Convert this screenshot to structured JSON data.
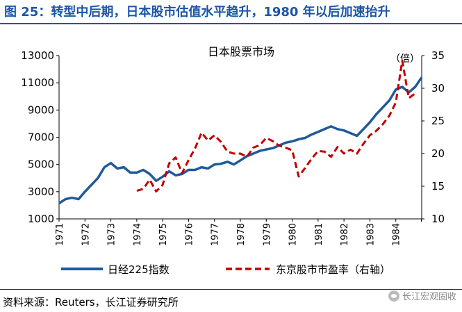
{
  "figure_title": "图 25：转型中后期，日本股市估值水平趋升，1980 年以后加速抬升",
  "source": "资料来源：Reuters，长江证券研究所",
  "watermark": "长江宏观固收",
  "colors": {
    "title": "#1a56a8",
    "nikkei": "#1f5a9a",
    "pe": "#c00000"
  },
  "chart_data": {
    "type": "line",
    "title": "日本股票市场",
    "x_ticks": [
      "1971",
      "1972",
      "1973",
      "1974",
      "1975",
      "1976",
      "1977",
      "1978",
      "1979",
      "1980",
      "1981",
      "1982",
      "1983",
      "1984"
    ],
    "xlim": [
      1971,
      1985
    ],
    "left_axis": {
      "ylim": [
        1000,
        13000
      ],
      "ticks": [
        "13000",
        "11000",
        "9000",
        "7000",
        "5000",
        "3000",
        "1000"
      ]
    },
    "right_axis": {
      "label": "（倍）",
      "ylim": [
        10,
        35
      ],
      "ticks": [
        "35",
        "30",
        "25",
        "20",
        "15",
        "10"
      ]
    },
    "series": [
      {
        "name": "日经225指数",
        "axis": "left",
        "style": "solid",
        "points": [
          [
            1971.0,
            2150
          ],
          [
            1971.25,
            2450
          ],
          [
            1971.5,
            2550
          ],
          [
            1971.75,
            2450
          ],
          [
            1972.0,
            3000
          ],
          [
            1972.25,
            3500
          ],
          [
            1972.5,
            4000
          ],
          [
            1972.75,
            4800
          ],
          [
            1973.0,
            5100
          ],
          [
            1973.25,
            4700
          ],
          [
            1973.5,
            4800
          ],
          [
            1973.75,
            4400
          ],
          [
            1974.0,
            4400
          ],
          [
            1974.25,
            4600
          ],
          [
            1974.5,
            4300
          ],
          [
            1974.75,
            3800
          ],
          [
            1975.0,
            4100
          ],
          [
            1975.25,
            4500
          ],
          [
            1975.5,
            4200
          ],
          [
            1975.75,
            4300
          ],
          [
            1976.0,
            4600
          ],
          [
            1976.25,
            4600
          ],
          [
            1976.5,
            4800
          ],
          [
            1976.75,
            4700
          ],
          [
            1977.0,
            5000
          ],
          [
            1977.25,
            5050
          ],
          [
            1977.5,
            5200
          ],
          [
            1977.75,
            5000
          ],
          [
            1978.0,
            5300
          ],
          [
            1978.25,
            5600
          ],
          [
            1978.5,
            5800
          ],
          [
            1978.75,
            6000
          ],
          [
            1979.0,
            6100
          ],
          [
            1979.25,
            6200
          ],
          [
            1979.5,
            6400
          ],
          [
            1979.75,
            6600
          ],
          [
            1980.0,
            6700
          ],
          [
            1980.25,
            6850
          ],
          [
            1980.5,
            6950
          ],
          [
            1980.75,
            7200
          ],
          [
            1981.0,
            7400
          ],
          [
            1981.25,
            7600
          ],
          [
            1981.5,
            7800
          ],
          [
            1981.75,
            7600
          ],
          [
            1982.0,
            7500
          ],
          [
            1982.25,
            7300
          ],
          [
            1982.5,
            7100
          ],
          [
            1982.75,
            7600
          ],
          [
            1983.0,
            8100
          ],
          [
            1983.25,
            8700
          ],
          [
            1983.5,
            9200
          ],
          [
            1983.75,
            9700
          ],
          [
            1984.0,
            10500
          ],
          [
            1984.25,
            10700
          ],
          [
            1984.5,
            10300
          ],
          [
            1984.75,
            10700
          ],
          [
            1985.0,
            11400
          ]
        ]
      },
      {
        "name": "东京股市市盈率（右轴）",
        "axis": "right",
        "style": "dashed",
        "points": [
          [
            1974.0,
            14.3
          ],
          [
            1974.25,
            14.6
          ],
          [
            1974.5,
            16.0
          ],
          [
            1974.75,
            14.2
          ],
          [
            1975.0,
            15.2
          ],
          [
            1975.25,
            18.5
          ],
          [
            1975.5,
            19.4
          ],
          [
            1975.75,
            17.0
          ],
          [
            1976.0,
            19.0
          ],
          [
            1976.25,
            20.8
          ],
          [
            1976.5,
            23.2
          ],
          [
            1976.75,
            22.0
          ],
          [
            1977.0,
            22.8
          ],
          [
            1977.25,
            21.8
          ],
          [
            1977.5,
            20.3
          ],
          [
            1977.75,
            20.0
          ],
          [
            1978.0,
            20.0
          ],
          [
            1978.25,
            19.5
          ],
          [
            1978.5,
            20.9
          ],
          [
            1978.75,
            21.3
          ],
          [
            1979.0,
            22.4
          ],
          [
            1979.25,
            21.9
          ],
          [
            1979.5,
            21.2
          ],
          [
            1979.75,
            20.9
          ],
          [
            1980.0,
            20.5
          ],
          [
            1980.25,
            16.5
          ],
          [
            1980.5,
            17.8
          ],
          [
            1980.75,
            19.2
          ],
          [
            1981.0,
            20.4
          ],
          [
            1981.25,
            20.3
          ],
          [
            1981.5,
            19.5
          ],
          [
            1981.75,
            21.0
          ],
          [
            1982.0,
            20.0
          ],
          [
            1982.25,
            20.6
          ],
          [
            1982.5,
            20.0
          ],
          [
            1982.75,
            21.5
          ],
          [
            1983.0,
            22.8
          ],
          [
            1983.25,
            23.5
          ],
          [
            1983.5,
            24.5
          ],
          [
            1983.75,
            25.8
          ],
          [
            1984.0,
            27.8
          ],
          [
            1984.25,
            34.2
          ],
          [
            1984.5,
            28.5
          ],
          [
            1984.75,
            29.2
          ]
        ]
      }
    ]
  }
}
